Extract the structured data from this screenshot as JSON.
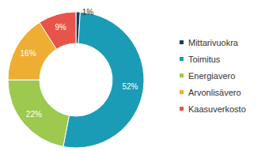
{
  "chart_data": {
    "type": "pie",
    "categories": [
      "Mittarivuokra",
      "Toimitus",
      "Energiavero",
      "Arvonlisävero",
      "Kaasuverkosto"
    ],
    "values": [
      1,
      52,
      22,
      16,
      9
    ],
    "value_labels": [
      "1%",
      "52%",
      "22%",
      "16%",
      "9%"
    ],
    "colors": [
      "#1f3b5c",
      "#1a9cb6",
      "#9cc94e",
      "#eeae33",
      "#e8534b"
    ],
    "legend": "right",
    "data_labels": true
  }
}
